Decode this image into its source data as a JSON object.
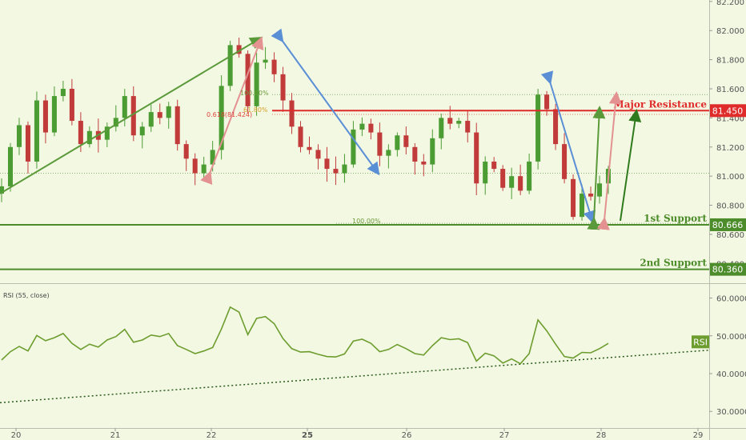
{
  "chart_data": [
    {
      "type": "candlestick",
      "title": "",
      "y_axis_ticks": [
        "82.200",
        "82.000",
        "81.800",
        "81.600",
        "81.400",
        "81.200",
        "81.000",
        "80.800",
        "80.600",
        "80.400"
      ],
      "ylim": [
        80.27,
        82.21
      ],
      "x_axis_ticks": [
        "20",
        "21",
        "22",
        "25",
        "26",
        "27",
        "28",
        "29"
      ],
      "x_axis_bold_tick": "25",
      "close_series": [
        80.93,
        81.2,
        81.35,
        81.1,
        81.52,
        81.3,
        81.55,
        81.6,
        81.38,
        81.22,
        81.31,
        81.25,
        81.34,
        81.4,
        81.55,
        81.28,
        81.34,
        81.44,
        81.4,
        81.48,
        81.22,
        81.12,
        81.02,
        81.08,
        81.18,
        81.62,
        81.9,
        81.84,
        81.48,
        81.78,
        81.8,
        81.7,
        81.52,
        81.34,
        81.2,
        81.18,
        81.12,
        81.05,
        81.02,
        81.08,
        81.32,
        81.36,
        81.3,
        81.14,
        81.18,
        81.28,
        81.2,
        81.1,
        81.08,
        81.26,
        81.4,
        81.36,
        81.38,
        81.3,
        80.95,
        81.1,
        81.05,
        80.92,
        81.0,
        80.9,
        81.1,
        81.56,
        81.46,
        81.22,
        80.98,
        80.72,
        80.88,
        80.86,
        80.95,
        81.05
      ],
      "levels": [
        {
          "label": "Major Resistance",
          "value": "81.450",
          "color": "#e02b2b"
        },
        {
          "label": "1st Support",
          "value": "80.666",
          "color": "#4d8c2a"
        },
        {
          "label": "2nd Support",
          "value": "80.360",
          "color": "#4d8c2a"
        }
      ],
      "fib_annotations": [
        "100.00%",
        "0.618(81.424)",
        "61.80%",
        "100.00%"
      ],
      "reference_line": 81.02
    },
    {
      "type": "line",
      "title": "RSI (55, close)",
      "indicator_tag": "RSI",
      "y_axis_ticks": [
        "60.0000",
        "50.0000",
        "40.0000",
        "30.0000"
      ],
      "ylim": [
        25.6,
        63.5
      ],
      "values": [
        43.6,
        45.8,
        47.2,
        46.0,
        50.1,
        48.7,
        49.5,
        50.6,
        48.0,
        46.4,
        47.8,
        47.0,
        48.9,
        49.8,
        51.7,
        48.3,
        48.9,
        50.2,
        49.8,
        50.6,
        47.4,
        46.4,
        45.3,
        46.0,
        46.9,
        51.8,
        57.6,
        56.3,
        50.3,
        54.6,
        55.1,
        53.2,
        49.3,
        46.6,
        45.7,
        45.8,
        45.1,
        44.5,
        44.4,
        45.2,
        48.6,
        49.1,
        48.0,
        45.8,
        46.4,
        47.7,
        46.6,
        45.3,
        44.9,
        47.4,
        49.5,
        49.0,
        49.2,
        48.2,
        43.3,
        45.4,
        44.7,
        42.8,
        43.9,
        42.6,
        45.3,
        54.2,
        51.3,
        47.8,
        44.5,
        44.1,
        45.6,
        45.5,
        46.6,
        48.0
      ],
      "trendline": [
        [
          0,
          32.3
        ],
        [
          1,
          46.2
        ]
      ]
    }
  ]
}
